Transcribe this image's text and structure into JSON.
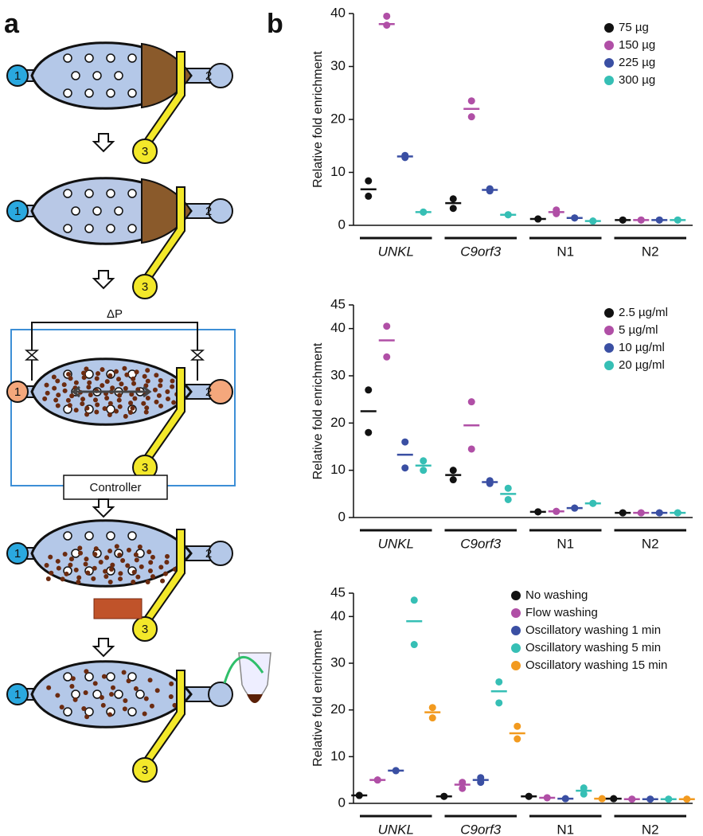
{
  "panel_labels": {
    "a": "a",
    "b": "b"
  },
  "panel_a": {
    "ports": [
      "1",
      "2",
      "3"
    ],
    "delta_p": "ΔP",
    "controller": "Controller"
  },
  "chart_data": [
    {
      "type": "dot",
      "ylabel": "Relative fold enrichment",
      "categories": [
        "UNKL",
        "C9orf3",
        "N1",
        "N2"
      ],
      "italic_categories": [
        true,
        true,
        false,
        false
      ],
      "ylim": [
        0,
        40
      ],
      "yticks": [
        0,
        10,
        20,
        30,
        40
      ],
      "series": [
        {
          "name": "75 µg",
          "color": "#111111",
          "values": [
            6.8,
            4.2,
            1.2,
            1.0
          ],
          "points": [
            [
              8.4,
              5.5
            ],
            [
              5.0,
              3.2
            ],
            [
              1.2,
              1.2
            ],
            [
              1.0,
              1.0
            ]
          ]
        },
        {
          "name": "150 µg",
          "color": "#b04fa6",
          "values": [
            38,
            22,
            2.5,
            1.0
          ],
          "points": [
            [
              39.5,
              37.8
            ],
            [
              23.5,
              20.5
            ],
            [
              2.9,
              2.2
            ],
            [
              1.0,
              1.0
            ]
          ]
        },
        {
          "name": "225 µg",
          "color": "#3a4fa3",
          "values": [
            13,
            6.7,
            1.4,
            1.0
          ],
          "points": [
            [
              13.2,
              12.8
            ],
            [
              6.9,
              6.5
            ],
            [
              1.4,
              1.4
            ],
            [
              1.0,
              1.0
            ]
          ]
        },
        {
          "name": "300 µg",
          "color": "#36bfb5",
          "values": [
            2.5,
            2.0,
            0.8,
            1.0
          ],
          "points": [
            [
              2.5,
              2.5
            ],
            [
              2.0,
              2.0
            ],
            [
              0.8,
              0.8
            ],
            [
              1.0,
              1.0
            ]
          ]
        }
      ]
    },
    {
      "type": "dot",
      "ylabel": "Relative fold enrichment",
      "categories": [
        "UNKL",
        "C9orf3",
        "N1",
        "N2"
      ],
      "italic_categories": [
        true,
        true,
        false,
        false
      ],
      "ylim": [
        0,
        45
      ],
      "yticks": [
        0,
        10,
        20,
        30,
        40,
        45
      ],
      "series": [
        {
          "name": "2.5 µg/ml",
          "color": "#111111",
          "values": [
            22.5,
            9,
            1.2,
            1.0
          ],
          "points": [
            [
              27,
              18
            ],
            [
              10,
              8
            ],
            [
              1.2,
              1.2
            ],
            [
              1.0,
              1.0
            ]
          ]
        },
        {
          "name": "5 µg/ml",
          "color": "#b04fa6",
          "values": [
            37.5,
            19.5,
            1.3,
            1.0
          ],
          "points": [
            [
              40.5,
              34
            ],
            [
              24.5,
              14.5
            ],
            [
              1.3,
              1.3
            ],
            [
              1.0,
              1.0
            ]
          ]
        },
        {
          "name": "10 µg/ml",
          "color": "#3a4fa3",
          "values": [
            13.3,
            7.5,
            2.0,
            1.0
          ],
          "points": [
            [
              16,
              10.5
            ],
            [
              7.8,
              7.2
            ],
            [
              2.0,
              2.0
            ],
            [
              1.0,
              1.0
            ]
          ]
        },
        {
          "name": "20 µg/ml",
          "color": "#36bfb5",
          "values": [
            11,
            5,
            3.0,
            1.0
          ],
          "points": [
            [
              12,
              10
            ],
            [
              6.2,
              3.8
            ],
            [
              3.0,
              3.0
            ],
            [
              1.0,
              1.0
            ]
          ]
        }
      ]
    },
    {
      "type": "dot",
      "ylabel": "Relative fold enrichment",
      "categories": [
        "UNKL",
        "C9orf3",
        "N1",
        "N2"
      ],
      "italic_categories": [
        true,
        true,
        false,
        false
      ],
      "ylim": [
        0,
        45
      ],
      "yticks": [
        0,
        10,
        20,
        30,
        40,
        45
      ],
      "series": [
        {
          "name": "No washing",
          "color": "#111111",
          "values": [
            1.7,
            1.5,
            1.5,
            1.0
          ],
          "points": [
            [
              1.7,
              1.7
            ],
            [
              1.5,
              1.5
            ],
            [
              1.5,
              1.5
            ],
            [
              1.0,
              1.0
            ]
          ]
        },
        {
          "name": "Flow washing",
          "color": "#b04fa6",
          "values": [
            5,
            4,
            1.2,
            0.9
          ],
          "points": [
            [
              5,
              5
            ],
            [
              4.5,
              3.2
            ],
            [
              1.2,
              1.2
            ],
            [
              0.9,
              0.9
            ]
          ]
        },
        {
          "name": "Oscillatory washing 1 min",
          "color": "#3a4fa3",
          "values": [
            7,
            5,
            1.0,
            0.9
          ],
          "points": [
            [
              7,
              7
            ],
            [
              5.5,
              4.5
            ],
            [
              1.0,
              1.0
            ],
            [
              0.9,
              0.9
            ]
          ]
        },
        {
          "name": "Oscillatory washing 5 min",
          "color": "#36bfb5",
          "values": [
            39,
            24,
            2.7,
            0.9
          ],
          "points": [
            [
              43.5,
              34
            ],
            [
              26,
              21.5
            ],
            [
              3.3,
              2.0
            ],
            [
              0.9,
              0.9
            ]
          ]
        },
        {
          "name": "Oscillatory washing 15 min",
          "color": "#f29a1f",
          "values": [
            19.5,
            15,
            1.0,
            0.9
          ],
          "points": [
            [
              20.5,
              18.3
            ],
            [
              16.5,
              13.8
            ],
            [
              1.0,
              1.0
            ],
            [
              0.9,
              0.9
            ]
          ]
        }
      ]
    }
  ]
}
